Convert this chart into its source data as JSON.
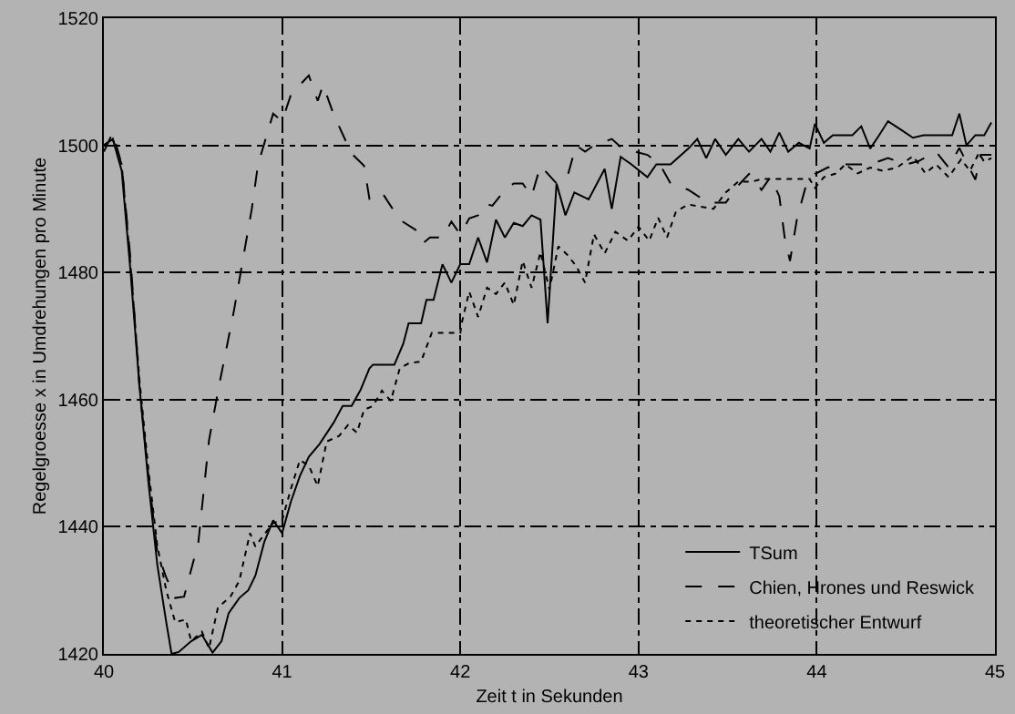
{
  "chart_data": {
    "type": "line",
    "xlabel": "Zeit t in Sekunden",
    "ylabel": "Regelgroesse x in Umdrehungen pro Minute",
    "xlim": [
      40,
      45
    ],
    "xticks": [
      40,
      41,
      42,
      43,
      44,
      45
    ],
    "ylim": [
      1420,
      1520
    ],
    "yticks": [
      1420,
      1440,
      1460,
      1480,
      1500,
      1520
    ],
    "grid": true,
    "legend": "bottom right",
    "series": [
      {
        "name": "TSum",
        "color": "#000000",
        "line_style": "solid",
        "x": [
          40.0,
          40.05,
          40.1,
          40.15,
          40.2,
          40.25,
          40.3,
          40.35,
          40.38,
          40.42,
          40.49,
          40.55,
          40.61,
          40.66,
          40.7,
          40.76,
          40.81,
          40.85,
          40.9,
          40.95,
          41.0,
          41.05,
          41.1,
          41.15,
          41.21,
          41.29,
          41.34,
          41.39,
          41.44,
          41.49,
          41.51,
          41.63,
          41.68,
          41.71,
          41.78,
          41.81,
          41.85,
          41.9,
          41.95,
          42.0,
          42.05,
          42.1,
          42.15,
          42.2,
          42.25,
          42.3,
          42.35,
          42.4,
          42.45,
          42.49,
          42.54,
          42.59,
          42.64,
          42.72,
          42.81,
          42.85,
          42.9,
          42.96,
          43.05,
          43.1,
          43.18,
          43.28,
          43.33,
          43.38,
          43.43,
          43.49,
          43.56,
          43.62,
          43.69,
          43.74,
          43.79,
          43.84,
          43.9,
          43.96,
          43.99,
          44.04,
          44.09,
          44.2,
          44.25,
          44.3,
          44.35,
          44.4,
          44.47,
          44.54,
          44.6,
          44.76,
          44.8,
          44.84,
          44.89,
          44.94,
          44.98
        ],
        "values": [
          1500,
          1501,
          1496,
          1480,
          1462,
          1447,
          1434,
          1425,
          1420,
          1420.3,
          1422,
          1423,
          1420.2,
          1422,
          1426.4,
          1428.8,
          1430,
          1432.3,
          1437.6,
          1441,
          1439,
          1444,
          1448,
          1451,
          1453,
          1456.4,
          1459,
          1459,
          1461.5,
          1464.9,
          1465.5,
          1465.5,
          1468.8,
          1472,
          1472,
          1475.7,
          1475.7,
          1481.3,
          1478.4,
          1481.3,
          1481.3,
          1485.5,
          1481.6,
          1488.3,
          1485.5,
          1487.8,
          1487.3,
          1489,
          1488.3,
          1472,
          1494,
          1489,
          1492.6,
          1491.5,
          1496.3,
          1490,
          1498.2,
          1497,
          1495,
          1497,
          1497,
          1499.5,
          1501,
          1498,
          1501,
          1498.5,
          1501,
          1499,
          1501,
          1499,
          1502,
          1499,
          1500.4,
          1499.5,
          1503.4,
          1500.4,
          1501.6,
          1501.6,
          1503,
          1499.5,
          1501.6,
          1503.8,
          1502.5,
          1501.2,
          1501.6,
          1501.6,
          1505,
          1500,
          1501.6,
          1501.6,
          1503.6
        ]
      },
      {
        "name": "Chien, Hrones und Reswick",
        "color": "#000000",
        "line_style": "dashed",
        "x": [
          40.0,
          40.05,
          40.1,
          40.15,
          40.2,
          40.25,
          40.3,
          40.35,
          40.4,
          40.45,
          40.53,
          40.59,
          40.645,
          40.73,
          40.78,
          40.83,
          40.865,
          40.95,
          41.0,
          41.05,
          41.15,
          41.2,
          41.23,
          41.29,
          41.39,
          41.46,
          41.49,
          41.56,
          41.66,
          41.76,
          41.79,
          41.83,
          41.9,
          41.95,
          42.0,
          42.05,
          42.1,
          42.14,
          42.18,
          42.25,
          42.3,
          42.35,
          42.4,
          42.45,
          42.54,
          42.6,
          42.65,
          42.7,
          42.75,
          42.85,
          42.91,
          42.98,
          43.05,
          43.12,
          43.18,
          43.28,
          43.39,
          43.49,
          43.56,
          43.62,
          43.69,
          43.74,
          43.79,
          43.82,
          43.85,
          43.89,
          43.94,
          43.99,
          44.06,
          44.13,
          44.2,
          44.3,
          44.4,
          44.5,
          44.57,
          44.67,
          44.74,
          44.8,
          44.89,
          44.92,
          44.98
        ],
        "values": [
          1499,
          1502,
          1497,
          1482,
          1462,
          1448,
          1436,
          1432,
          1428.8,
          1429,
          1437.5,
          1453.6,
          1462,
          1474,
          1482,
          1490,
          1497,
          1505,
          1503.8,
          1508,
          1511,
          1507,
          1509.5,
          1504.8,
          1498.7,
          1496.8,
          1491.6,
          1492.6,
          1488.3,
          1486.5,
          1484.6,
          1485.5,
          1485.5,
          1488,
          1486,
          1488.5,
          1489,
          1490.8,
          1490.5,
          1493,
          1494,
          1494,
          1492,
          1496.8,
          1494,
          1495,
          1500,
          1499,
          1500,
          1501,
          1499.5,
          1499,
          1498.5,
          1497,
          1494,
          1493,
          1491,
          1491,
          1493.7,
          1495.5,
          1493,
          1495,
          1492,
          1485.5,
          1481.8,
          1488.6,
          1493.7,
          1495.5,
          1496.5,
          1497,
          1497,
          1497,
          1498,
          1497,
          1497.5,
          1499,
          1496.5,
          1499.6,
          1494.6,
          1498.5,
          1498.5
        ]
      },
      {
        "name": "theoretischer Entwurf",
        "color": "#000000",
        "line_style": "dotted",
        "x": [
          40.0,
          40.05,
          40.1,
          40.15,
          40.2,
          40.25,
          40.3,
          40.35,
          40.4,
          40.46,
          40.49,
          40.55,
          40.59,
          40.64,
          40.71,
          40.76,
          40.82,
          40.85,
          40.9,
          40.95,
          41.0,
          41.05,
          41.1,
          41.15,
          41.2,
          41.25,
          41.32,
          41.37,
          41.42,
          41.46,
          41.51,
          41.56,
          41.61,
          41.66,
          41.71,
          41.78,
          41.84,
          42.0,
          42.01,
          42.05,
          42.1,
          42.15,
          42.2,
          42.25,
          42.3,
          42.35,
          42.4,
          42.45,
          42.5,
          42.55,
          42.6,
          42.65,
          42.7,
          42.75,
          42.81,
          42.87,
          42.94,
          43.0,
          43.06,
          43.11,
          43.16,
          43.21,
          43.28,
          43.42,
          43.49,
          43.56,
          43.64,
          43.69,
          43.76,
          43.86,
          43.96,
          43.99,
          44.04,
          44.11,
          44.16,
          44.23,
          44.3,
          44.37,
          44.45,
          44.54,
          44.61,
          44.67,
          44.74,
          44.81,
          44.86,
          44.91,
          44.94,
          44.98
        ],
        "values": [
          1500,
          1501,
          1497,
          1481,
          1463,
          1449,
          1437,
          1430,
          1425,
          1425.4,
          1422,
          1423.5,
          1420.9,
          1427.3,
          1429,
          1431.5,
          1439,
          1436.9,
          1438.8,
          1440.6,
          1441,
          1446,
          1450.5,
          1449.6,
          1446.4,
          1453.4,
          1454.3,
          1456,
          1454.8,
          1458.4,
          1459,
          1461.4,
          1459.8,
          1464.9,
          1465.7,
          1466,
          1470.5,
          1470.5,
          1472.3,
          1477,
          1473,
          1477.6,
          1476.6,
          1478.4,
          1474.9,
          1481.8,
          1477.6,
          1483.2,
          1477.3,
          1484.1,
          1482.8,
          1481,
          1478.4,
          1486,
          1483,
          1486.4,
          1485,
          1487.2,
          1485,
          1488.6,
          1485.5,
          1489.6,
          1490.7,
          1490,
          1492.6,
          1494.3,
          1494.3,
          1494.7,
          1494.7,
          1494.7,
          1494.7,
          1493.3,
          1495,
          1495.6,
          1497,
          1495.6,
          1496.5,
          1496,
          1496.5,
          1498.3,
          1495.6,
          1497,
          1495,
          1497.8,
          1496,
          1498.8,
          1497.4,
          1498
        ]
      }
    ]
  }
}
